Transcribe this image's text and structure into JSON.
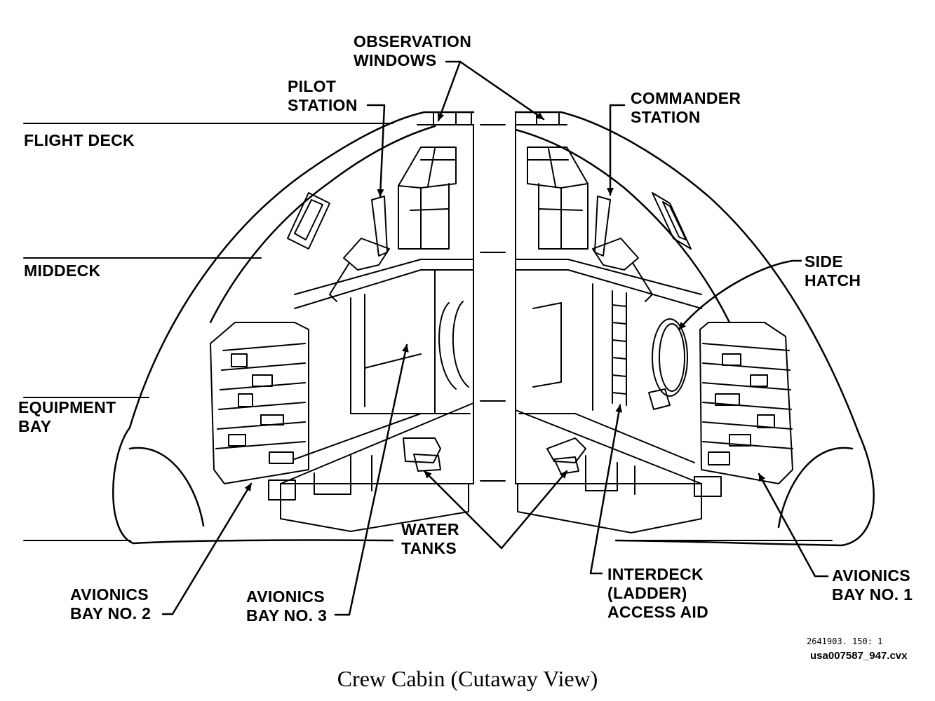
{
  "labels": {
    "observation_windows": [
      "OBSERVATION",
      "WINDOWS"
    ],
    "pilot_station": [
      "PILOT",
      "STATION"
    ],
    "commander_station": [
      "COMMANDER",
      "STATION"
    ],
    "flight_deck": "FLIGHT DECK",
    "middeck": "MIDDECK",
    "equipment_bay": [
      "EQUIPMENT",
      "BAY"
    ],
    "side_hatch": [
      "SIDE",
      "HATCH"
    ],
    "water_tanks": [
      "WATER",
      "TANKS"
    ],
    "avionics_bay_2": [
      "AVIONICS",
      "BAY NO. 2"
    ],
    "avionics_bay_3": [
      "AVIONICS",
      "BAY NO. 3"
    ],
    "interdeck": [
      "INTERDECK",
      "(LADDER)",
      "ACCESS AID"
    ],
    "avionics_bay_1": [
      "AVIONICS",
      "BAY NO. 1"
    ]
  },
  "drawing_number": "2641903. 150: 1",
  "file_name": "usa007587_947.cvx",
  "caption": "Crew Cabin (Cutaway View)"
}
